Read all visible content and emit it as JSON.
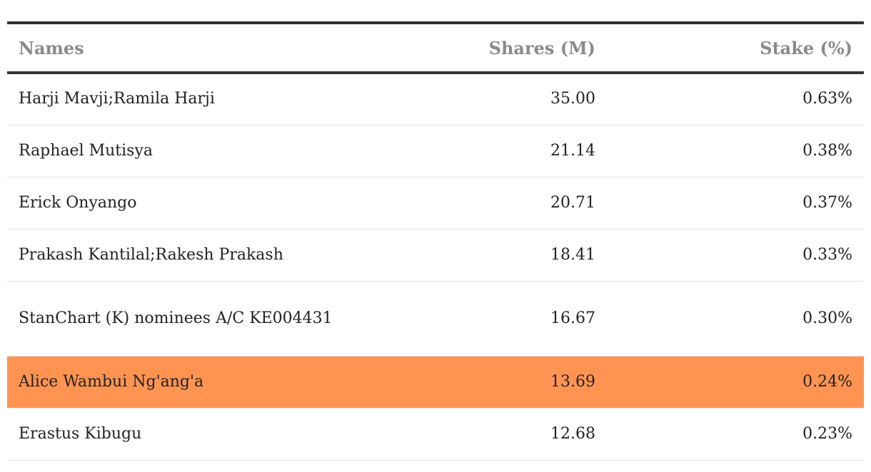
{
  "table": {
    "headers": {
      "name": "Names",
      "shares": "Shares (M)",
      "stake": "Stake (%)"
    },
    "rows": [
      {
        "name": "Harji Mavji;Ramila Harji",
        "shares": "35.00",
        "stake": "0.63%",
        "highlight": false
      },
      {
        "name": "Raphael Mutisya",
        "shares": "21.14",
        "stake": "0.38%",
        "highlight": false
      },
      {
        "name": "Erick Onyango",
        "shares": "20.71",
        "stake": "0.37%",
        "highlight": false
      },
      {
        "name": "Prakash Kantilal;Rakesh Prakash",
        "shares": "18.41",
        "stake": "0.33%",
        "highlight": false
      },
      {
        "name": "StanChart (K) nominees A/C KE004431",
        "shares": "16.67",
        "stake": "0.30%",
        "highlight": false
      },
      {
        "name": "Alice Wambui Ng'ang'a",
        "shares": "13.69",
        "stake": "0.24%",
        "highlight": true
      },
      {
        "name": "Erastus Kibugu",
        "shares": "12.68",
        "stake": "0.23%",
        "highlight": false
      }
    ],
    "highlight_color": "#ff9452"
  }
}
